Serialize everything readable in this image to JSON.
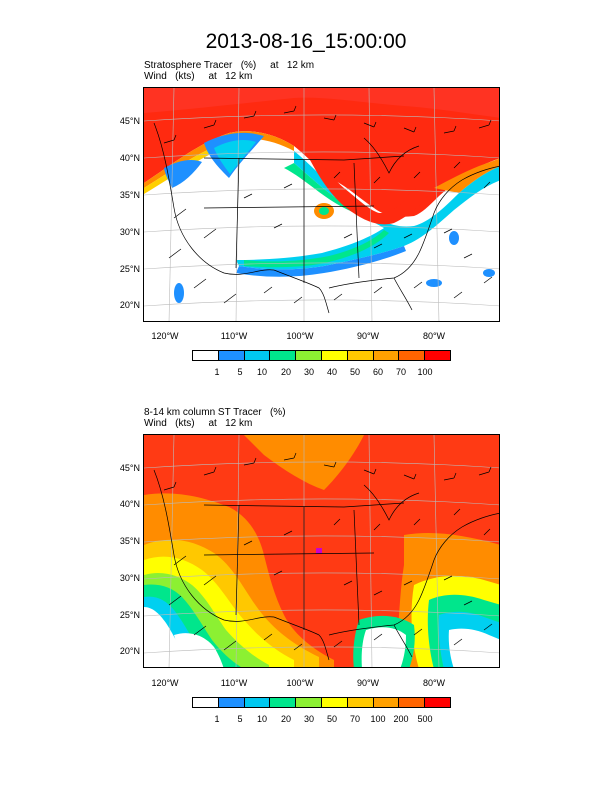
{
  "title": "2013-08-16_15:00:00",
  "panels": [
    {
      "line1": "Stratosphere Tracer   (%)     at   12 km",
      "line2": "Wind   (kts)     at   12 km",
      "colorbar_labels": [
        "1",
        "5",
        "10",
        "20",
        "30",
        "40",
        "50",
        "60",
        "70",
        "100"
      ]
    },
    {
      "line1": "8-14 km column ST Tracer   (%)",
      "line2": "Wind   (kts)     at   12 km",
      "colorbar_labels": [
        "1",
        "5",
        "10",
        "20",
        "30",
        "50",
        "70",
        "100",
        "200",
        "500"
      ]
    }
  ],
  "lat_labels": [
    "45°N",
    "40°N",
    "35°N",
    "30°N",
    "25°N",
    "20°N"
  ],
  "lon_labels": [
    "120°W",
    "110°W",
    "100°W",
    "90°W",
    "80°W"
  ],
  "colorbar_colors": [
    "#ffffff",
    "#1e90ff",
    "#00c8f0",
    "#00e68c",
    "#8cf032",
    "#ffff00",
    "#ffc800",
    "#ffa000",
    "#ff6400",
    "#ff0000"
  ]
}
